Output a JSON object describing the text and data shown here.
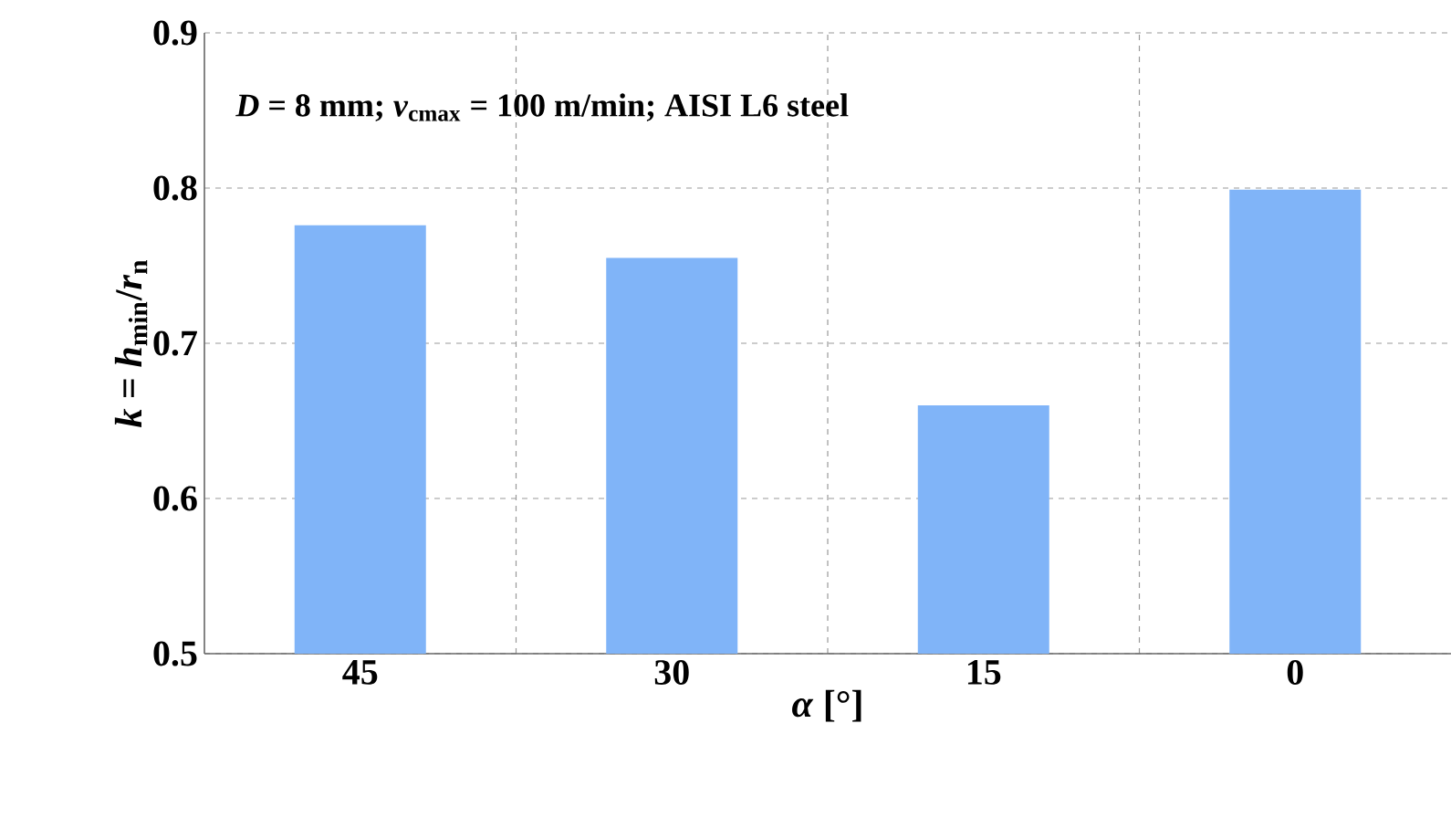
{
  "chart_data": {
    "type": "bar",
    "categories": [
      "45",
      "30",
      "15",
      "0"
    ],
    "values": [
      0.776,
      0.755,
      0.66,
      0.799
    ],
    "color": "#80b4f8",
    "xlabel": "*α* [°]",
    "ylabel": "*k* = *h*$_{min}$/*r*$_{n}$",
    "annotations": [
      "*D* = 8 mm; *v*$_{cmax}$ = 100 m/min; AISI L6 steel"
    ],
    "ylim": [
      0.5,
      0.9
    ],
    "yticks": [
      0.5,
      0.6,
      0.7,
      0.8,
      0.9
    ],
    "grid": true
  }
}
